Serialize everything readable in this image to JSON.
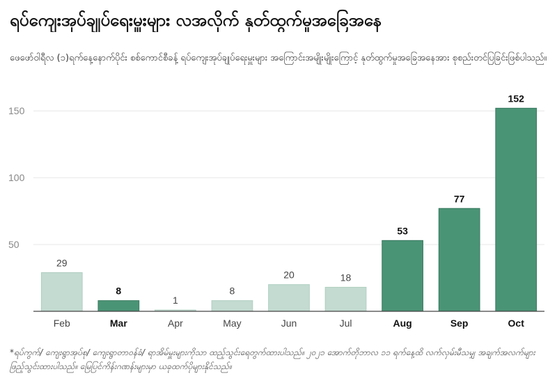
{
  "header": {
    "title": "ရပ်ကျေးအုပ်ချုပ်ရေးမှူးများ လအလိုက် နုတ်ထွက်မှုအခြေအနေ",
    "subtitle": "ဖေဖော်ဝါရီလ (၁)ရက်နေ့နောက်ပိုင်း စစ်ကောင်စီခန့် ရပ်ကျေးအုပ်ချုပ်ရေးမှူးများ အကြောင်းအမျိုးမျိုးကြောင့် နုတ်ထွက်မှုအခြေအနေအား စုစည်းတင်ပြခြင်းဖြစ်ပါသည်။"
  },
  "footnote": "*ရပ်ကွက်/ ကျေးရွာအုပ်စု/ ကျေးရွာတာဝန်ခံ/ ရာအိမ်မှူးများကိုသာ ထည့်သွင်းရေတွက်ထားပါသည်။ ၂၀၂၁ အောက်တိုဘာလ ၁၁ ရက်နေ့ထိ လက်လှမ်းမီသမျှ အချက်အလက်များဖြည့်သွင်းထားပါသည်။ မြေပြင်ကိန်းဂဏန်းများမှာ ယခုထက်ပိုများနိုင်သည်။",
  "chart_data": {
    "type": "bar",
    "categories": [
      "Feb",
      "Mar",
      "Apr",
      "May",
      "Jun",
      "Jul",
      "Aug",
      "Sep",
      "Oct"
    ],
    "values": [
      29,
      8,
      1,
      8,
      20,
      18,
      53,
      77,
      152
    ],
    "highlighted": [
      false,
      true,
      false,
      false,
      false,
      false,
      true,
      true,
      true
    ],
    "ylim": [
      0,
      160
    ],
    "yticks": [
      0,
      50,
      100,
      150
    ],
    "xlabel": "",
    "ylabel": "",
    "grid": true,
    "colors": {
      "highlight": "#4a9476",
      "highlight_stroke": "#3a7a60",
      "muted": "#c3dbd1",
      "muted_stroke": "#b0cfc2",
      "grid": "#e6e6e6",
      "axis": "#444444"
    }
  }
}
